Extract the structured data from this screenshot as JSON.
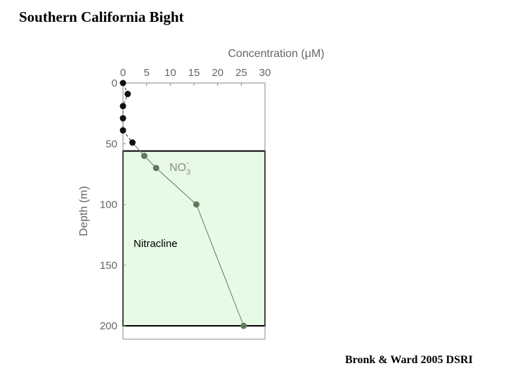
{
  "title": "Southern California Bight",
  "citation": "Bronk & Ward 2005 DSRI",
  "chart_data": {
    "type": "scatter",
    "xlabel": "Concentration (μM)",
    "ylabel": "Depth (m)",
    "xlim": [
      0,
      30
    ],
    "ylim": [
      0,
      210
    ],
    "y_inverted": true,
    "x_axis_position": "top",
    "xticks": [
      "0",
      "5",
      "10",
      "15",
      "20",
      "25",
      "30"
    ],
    "yticks": [
      "0",
      "50",
      "100",
      "150",
      "200"
    ],
    "series": [
      {
        "name": "NO3-",
        "label_main": "NO",
        "label_sub": "3",
        "label_sup": "-",
        "points": [
          {
            "x": 0,
            "y": 0
          },
          {
            "x": 1,
            "y": 9
          },
          {
            "x": 0,
            "y": 19
          },
          {
            "x": 0,
            "y": 29
          },
          {
            "x": 0,
            "y": 39
          },
          {
            "x": 2,
            "y": 49
          },
          {
            "x": 4.5,
            "y": 60
          },
          {
            "x": 7,
            "y": 70
          },
          {
            "x": 15.5,
            "y": 100
          },
          {
            "x": 25.5,
            "y": 200
          }
        ]
      }
    ],
    "region": {
      "label": "Nitracline",
      "y_from": 56,
      "y_to": 200,
      "color": "#e6fae6"
    },
    "colors": {
      "upper_points": "#111111",
      "lower_points": "#5f7a5f",
      "line": "#5f7a5f"
    }
  }
}
